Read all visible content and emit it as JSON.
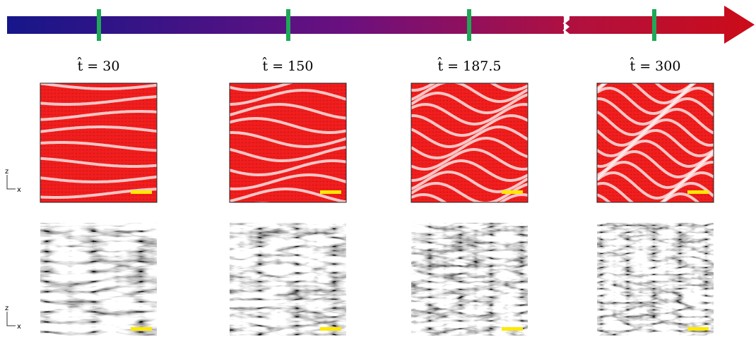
{
  "panels": [
    {
      "label": "t̂ = 30"
    },
    {
      "label": "t̂ = 150"
    },
    {
      "label": "t̂ = 187.5"
    },
    {
      "label": "t̂ = 300"
    }
  ],
  "axis_labels": {
    "vertical": "z",
    "horizontal": "x"
  }
}
